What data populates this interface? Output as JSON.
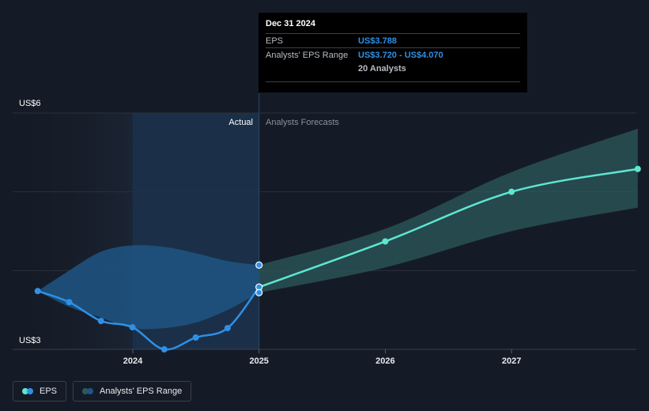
{
  "tooltip": {
    "date": "Dec 31 2024",
    "eps_label": "EPS",
    "eps_value": "US$3.788",
    "range_label": "Analysts' EPS Range",
    "range_value": "US$3.720 - US$4.070",
    "analysts": "20 Analysts"
  },
  "legend": {
    "eps": "EPS",
    "range": "Analysts' EPS Range"
  },
  "colors": {
    "background": "#151b26",
    "actual_line": "#2e90e6",
    "actual_band": "#1f5584",
    "forecast_line": "#5ee6d0",
    "forecast_band": "#2c5a5b",
    "highlight": "#1b3048"
  },
  "chart_data": {
    "type": "line",
    "xlabel": "",
    "ylabel": "",
    "x_ticks": [
      "2024",
      "2025",
      "2026",
      "2027"
    ],
    "y_ticks": [
      {
        "value": 6,
        "label": "US$6"
      },
      {
        "value": 3,
        "label": "US$3"
      }
    ],
    "ylim": [
      3,
      6
    ],
    "grid": true,
    "section_labels": {
      "actual": "Actual",
      "forecast": "Analysts Forecasts"
    },
    "series": [
      {
        "name": "EPS",
        "role": "actual",
        "points": [
          {
            "x": "2023-04-01",
            "y": 3.74
          },
          {
            "x": "2023-07-01",
            "y": 3.6
          },
          {
            "x": "2023-10-01",
            "y": 3.36
          },
          {
            "x": "2023-12-31",
            "y": 3.28
          },
          {
            "x": "2024-04-01",
            "y": 3.0
          },
          {
            "x": "2024-07-01",
            "y": 3.15
          },
          {
            "x": "2024-10-01",
            "y": 3.27
          },
          {
            "x": "2024-12-31",
            "y": 3.79
          }
        ]
      },
      {
        "name": "EPS",
        "role": "forecast",
        "points": [
          {
            "x": "2024-12-31",
            "y": 3.79
          },
          {
            "x": "2025-12-31",
            "y": 4.37
          },
          {
            "x": "2026-12-31",
            "y": 5.0
          },
          {
            "x": "2027-12-31",
            "y": 5.29
          }
        ]
      },
      {
        "name": "Analysts' EPS Range",
        "role": "actual_range",
        "upper": [
          {
            "x": "2023-04-01",
            "y": 3.74
          },
          {
            "x": "2023-07-01",
            "y": 4.0
          },
          {
            "x": "2023-10-01",
            "y": 4.24
          },
          {
            "x": "2023-12-31",
            "y": 4.32
          },
          {
            "x": "2024-04-01",
            "y": 4.3
          },
          {
            "x": "2024-07-01",
            "y": 4.22
          },
          {
            "x": "2024-10-01",
            "y": 4.12
          },
          {
            "x": "2024-12-31",
            "y": 4.07
          }
        ],
        "lower": [
          {
            "x": "2023-04-01",
            "y": 3.74
          },
          {
            "x": "2023-07-01",
            "y": 3.54
          },
          {
            "x": "2023-10-01",
            "y": 3.4
          },
          {
            "x": "2023-12-31",
            "y": 3.27
          },
          {
            "x": "2024-04-01",
            "y": 3.27
          },
          {
            "x": "2024-07-01",
            "y": 3.34
          },
          {
            "x": "2024-10-01",
            "y": 3.5
          },
          {
            "x": "2024-12-31",
            "y": 3.72
          }
        ]
      },
      {
        "name": "Analysts' EPS Range",
        "role": "forecast_range",
        "upper": [
          {
            "x": "2024-12-31",
            "y": 4.07
          },
          {
            "x": "2025-12-31",
            "y": 4.53
          },
          {
            "x": "2026-12-31",
            "y": 5.25
          },
          {
            "x": "2027-12-31",
            "y": 5.8
          }
        ],
        "lower": [
          {
            "x": "2024-12-31",
            "y": 3.72
          },
          {
            "x": "2025-12-31",
            "y": 4.04
          },
          {
            "x": "2026-12-31",
            "y": 4.5
          },
          {
            "x": "2027-12-31",
            "y": 4.8
          }
        ]
      }
    ],
    "highlight": {
      "from": "2023-12-31",
      "to": "2024-12-31"
    }
  }
}
